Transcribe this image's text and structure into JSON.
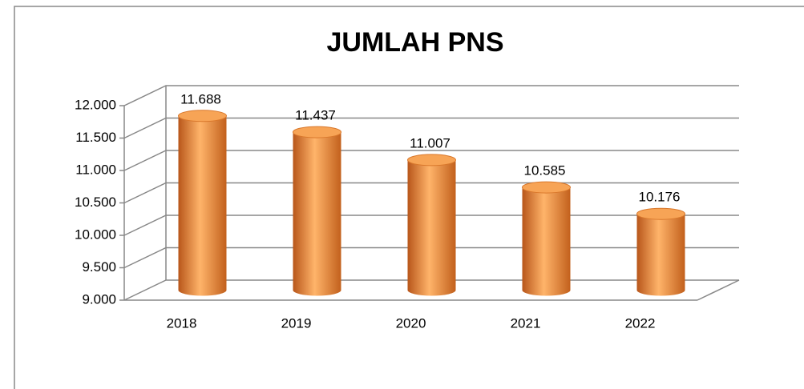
{
  "chart_data": {
    "type": "bar3d",
    "title": "JUMLAH PNS",
    "categories": [
      "2018",
      "2019",
      "2020",
      "2021",
      "2022"
    ],
    "values": [
      11688,
      11437,
      11007,
      10585,
      10176
    ],
    "value_labels": [
      "11.688",
      "11.437",
      "11.007",
      "10.585",
      "10.176"
    ],
    "color": "#f5943c",
    "ylim": [
      9000,
      12000
    ],
    "yticks": [
      {
        "value": 9000,
        "label": "9.000"
      },
      {
        "value": 9500,
        "label": "9.500"
      },
      {
        "value": 10000,
        "label": "10.000"
      },
      {
        "value": 10500,
        "label": "10.500"
      },
      {
        "value": 11000,
        "label": "11.000"
      },
      {
        "value": 11500,
        "label": "11.500"
      },
      {
        "value": 12000,
        "label": "12.000"
      }
    ],
    "grid": true
  }
}
